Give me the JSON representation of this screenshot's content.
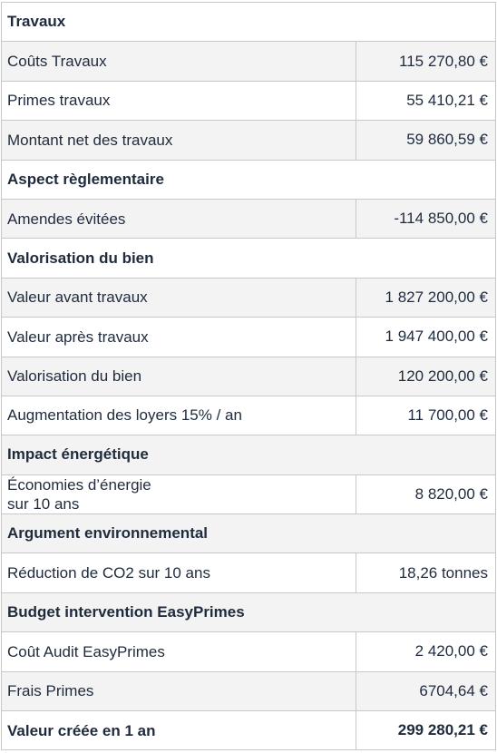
{
  "sections": {
    "travaux": {
      "title": "Travaux",
      "rows": [
        {
          "label": "Coûts Travaux",
          "value": "115 270,80 €"
        },
        {
          "label": "Primes travaux",
          "value": "55 410,21 €"
        },
        {
          "label": "Montant net des travaux",
          "value": "59 860,59 €"
        }
      ]
    },
    "reglementaire": {
      "title": "Aspect règlementaire",
      "rows": [
        {
          "label": "Amendes évitées",
          "value": "-114 850,00 €"
        }
      ]
    },
    "valorisation": {
      "title": "Valorisation du bien",
      "rows": [
        {
          "label": "Valeur avant travaux",
          "value": "1 827 200,00 €"
        },
        {
          "label": "Valeur après travaux",
          "value": "1 947 400,00 €"
        },
        {
          "label": "Valorisation du bien",
          "value": "120 200,00 €"
        },
        {
          "label": "Augmentation des loyers 15% / an",
          "value": "11 700,00 €"
        }
      ]
    },
    "energie": {
      "title": "Impact énergétique",
      "rows": [
        {
          "label_line1": "Économies d’énergie",
          "label_line2": "sur 10 ans",
          "value": "8 820,00 €"
        }
      ]
    },
    "environnement": {
      "title": "Argument environnemental",
      "rows": [
        {
          "label": "Réduction de CO2 sur 10 ans",
          "value": "18,26 tonnes"
        }
      ]
    },
    "budget": {
      "title": "Budget intervention EasyPrimes",
      "rows": [
        {
          "label": "Coût Audit EasyPrimes",
          "value": "2 420,00 €"
        },
        {
          "label": "Frais Primes",
          "value": "6704,64 €"
        }
      ]
    }
  },
  "total": {
    "label": "Valeur créée en 1 an",
    "value": "299 280,21 €"
  }
}
